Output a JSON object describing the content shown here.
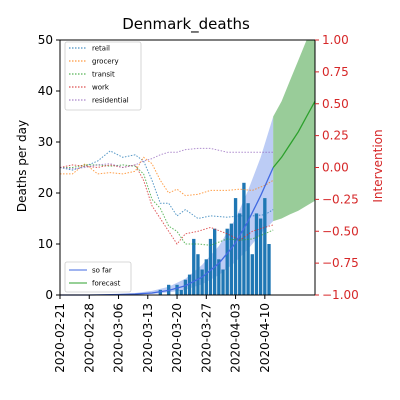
{
  "chart_data": {
    "type": "bar",
    "title": "Denmark_deaths",
    "ylabel": "Deaths per day",
    "y2label": "Intervention",
    "ylim": [
      0,
      50
    ],
    "y2lim": [
      -1.0,
      1.0
    ],
    "yticks": [
      0,
      10,
      20,
      30,
      40,
      50
    ],
    "y2ticks": [
      "1.00",
      "0.75",
      "0.50",
      "0.25",
      "0.00",
      "−0.25",
      "−0.50",
      "−0.75",
      "−1.00"
    ],
    "y2tick_values": [
      1.0,
      0.75,
      0.5,
      0.25,
      0.0,
      -0.25,
      -0.5,
      -0.75,
      -1.0
    ],
    "xticks": [
      "2020-02-21",
      "2020-02-28",
      "2020-03-06",
      "2020-03-13",
      "2020-03-20",
      "2020-03-27",
      "2020-04-03",
      "2020-04-10"
    ],
    "x_start": "2020-02-21",
    "x_end": "2020-04-22",
    "bars": {
      "dates": [
        "2020-03-14",
        "2020-03-15",
        "2020-03-16",
        "2020-03-17",
        "2020-03-18",
        "2020-03-19",
        "2020-03-20",
        "2020-03-21",
        "2020-03-22",
        "2020-03-23",
        "2020-03-24",
        "2020-03-25",
        "2020-03-26",
        "2020-03-27",
        "2020-03-28",
        "2020-03-29",
        "2020-03-30",
        "2020-03-31",
        "2020-04-01",
        "2020-04-02",
        "2020-04-03",
        "2020-04-04",
        "2020-04-05",
        "2020-04-06",
        "2020-04-07",
        "2020-04-08",
        "2020-04-09",
        "2020-04-10",
        "2020-04-11"
      ],
      "values": [
        0,
        0,
        1,
        0,
        2,
        0,
        2,
        1,
        3,
        4,
        11,
        8,
        5,
        7,
        11,
        13,
        7,
        5,
        13,
        14,
        19,
        16,
        22,
        18,
        8,
        16,
        15,
        19,
        10
      ]
    },
    "fit": {
      "name": "so far",
      "dates": [
        "2020-02-21",
        "2020-02-28",
        "2020-03-06",
        "2020-03-10",
        "2020-03-14",
        "2020-03-18",
        "2020-03-22",
        "2020-03-26",
        "2020-03-30",
        "2020-04-03",
        "2020-04-06",
        "2020-04-09",
        "2020-04-12"
      ],
      "mean": [
        0,
        0,
        0.1,
        0.2,
        0.4,
        0.9,
        1.8,
        3.5,
        6.2,
        10.2,
        14.5,
        19.5,
        25
      ],
      "lower": [
        0,
        0,
        0.05,
        0.1,
        0.2,
        0.5,
        1.0,
        2.1,
        3.9,
        6.5,
        9.0,
        12.0,
        14.5
      ],
      "upper": [
        0,
        0,
        0.2,
        0.4,
        0.8,
        1.6,
        3.2,
        5.9,
        9.6,
        15,
        20.5,
        27,
        35
      ]
    },
    "forecast": {
      "name": "forecast",
      "dates": [
        "2020-04-12",
        "2020-04-14",
        "2020-04-16",
        "2020-04-18",
        "2020-04-20",
        "2020-04-22"
      ],
      "mean": [
        25,
        27,
        29.5,
        32,
        35,
        38
      ],
      "lower": [
        14.5,
        15,
        15.8,
        16.5,
        17.5,
        18.5
      ],
      "upper": [
        35,
        38,
        42,
        46,
        51,
        57
      ]
    },
    "interventions": [
      {
        "name": "retail",
        "color": "#1f77b4",
        "dates": [
          "2020-02-21",
          "2020-02-24",
          "2020-02-27",
          "2020-03-01",
          "2020-03-04",
          "2020-03-07",
          "2020-03-10",
          "2020-03-12",
          "2020-03-14",
          "2020-03-16",
          "2020-03-18",
          "2020-03-20",
          "2020-03-22",
          "2020-03-25",
          "2020-03-28",
          "2020-04-01",
          "2020-04-04",
          "2020-04-07",
          "2020-04-10",
          "2020-04-12"
        ],
        "values": [
          0.0,
          -0.02,
          0.01,
          0.05,
          0.13,
          0.08,
          0.1,
          0.05,
          -0.1,
          -0.28,
          -0.28,
          -0.38,
          -0.33,
          -0.4,
          -0.38,
          -0.39,
          -0.38,
          -0.38,
          -0.37,
          -0.33
        ]
      },
      {
        "name": "grocery",
        "color": "#ff7f0e",
        "dates": [
          "2020-02-21",
          "2020-02-24",
          "2020-02-27",
          "2020-03-01",
          "2020-03-04",
          "2020-03-07",
          "2020-03-10",
          "2020-03-12",
          "2020-03-14",
          "2020-03-16",
          "2020-03-18",
          "2020-03-20",
          "2020-03-22",
          "2020-03-25",
          "2020-03-28",
          "2020-04-01",
          "2020-04-04",
          "2020-04-07",
          "2020-04-10",
          "2020-04-12"
        ],
        "values": [
          -0.05,
          -0.05,
          0.03,
          -0.05,
          -0.04,
          -0.05,
          -0.03,
          0.08,
          0.03,
          -0.1,
          -0.2,
          -0.17,
          -0.22,
          -0.21,
          -0.18,
          -0.18,
          -0.17,
          -0.18,
          -0.14,
          -0.1
        ]
      },
      {
        "name": "transit",
        "color": "#2ca02c",
        "dates": [
          "2020-02-21",
          "2020-02-24",
          "2020-02-27",
          "2020-03-01",
          "2020-03-04",
          "2020-03-07",
          "2020-03-10",
          "2020-03-12",
          "2020-03-14",
          "2020-03-16",
          "2020-03-18",
          "2020-03-20",
          "2020-03-22",
          "2020-03-25",
          "2020-03-28",
          "2020-04-01",
          "2020-04-04",
          "2020-04-07",
          "2020-04-10",
          "2020-04-12"
        ],
        "values": [
          0.0,
          0.0,
          0.02,
          0.02,
          0.01,
          0.02,
          0.01,
          -0.05,
          -0.25,
          -0.32,
          -0.46,
          -0.5,
          -0.6,
          -0.6,
          -0.61,
          -0.56,
          -0.57,
          -0.56,
          -0.52,
          -0.49
        ]
      },
      {
        "name": "work",
        "color": "#d62728",
        "dates": [
          "2020-02-21",
          "2020-02-24",
          "2020-02-27",
          "2020-03-01",
          "2020-03-04",
          "2020-03-07",
          "2020-03-10",
          "2020-03-12",
          "2020-03-14",
          "2020-03-16",
          "2020-03-18",
          "2020-03-20",
          "2020-03-22",
          "2020-03-25",
          "2020-03-28",
          "2020-04-01",
          "2020-04-04",
          "2020-04-07",
          "2020-04-10",
          "2020-04-12"
        ],
        "values": [
          0.0,
          0.02,
          0.01,
          0.0,
          0.02,
          0.0,
          0.02,
          -0.1,
          -0.3,
          -0.4,
          -0.5,
          -0.6,
          -0.52,
          -0.5,
          -0.47,
          -0.52,
          -0.57,
          -0.5,
          -0.47,
          -0.45
        ]
      },
      {
        "name": "residential",
        "color": "#9467bd",
        "dates": [
          "2020-02-21",
          "2020-02-24",
          "2020-02-27",
          "2020-03-01",
          "2020-03-04",
          "2020-03-07",
          "2020-03-10",
          "2020-03-12",
          "2020-03-14",
          "2020-03-16",
          "2020-03-18",
          "2020-03-20",
          "2020-03-22",
          "2020-03-25",
          "2020-03-28",
          "2020-04-01",
          "2020-04-04",
          "2020-04-07",
          "2020-04-10",
          "2020-04-12"
        ],
        "values": [
          0.0,
          -0.01,
          0.0,
          0.02,
          0.03,
          0.0,
          0.02,
          0.05,
          0.07,
          0.1,
          0.12,
          0.12,
          0.14,
          0.15,
          0.15,
          0.12,
          0.12,
          0.12,
          0.12,
          0.12
        ]
      }
    ],
    "legend_top": {
      "placement": "top-left",
      "entries": [
        "retail",
        "grocery",
        "transit",
        "work",
        "residential"
      ]
    },
    "legend_bottom": {
      "placement": "bottom-left",
      "entries": [
        "so far",
        "forecast"
      ]
    },
    "colors": {
      "bars": "#1f77b4",
      "fit": "#4169e1",
      "fit_band": "#6a8fe8",
      "forecast": "#2ca02c",
      "forecast_band": "#55aa55",
      "right_axis": "#d62728"
    }
  }
}
